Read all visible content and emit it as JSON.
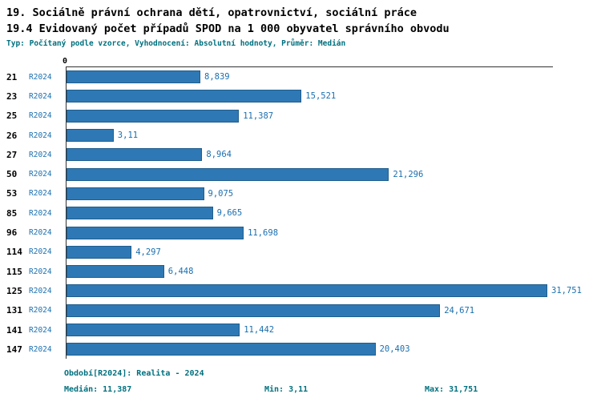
{
  "header": {
    "line1": "19. Sociálně právní ochrana dětí, opatrovnictví, sociální práce",
    "line2": "19.4 Evidovaný počet případů SPOD na 1 000 obyvatel správního obvodu",
    "meta": "Typ: Počítaný podle vzorce, Vyhodnocení: Absolutní hodnoty, Průměr: Medián"
  },
  "chart_data": {
    "type": "bar",
    "orientation": "horizontal",
    "title": "19.4 Evidovaný počet případů SPOD na 1 000 obyvatel správního obvodu",
    "series_label": "R2024",
    "categories": [
      "21",
      "23",
      "25",
      "26",
      "27",
      "50",
      "53",
      "85",
      "96",
      "114",
      "115",
      "125",
      "131",
      "141",
      "147"
    ],
    "values": [
      8.839,
      15.521,
      11.387,
      3.11,
      8.964,
      21.296,
      9.075,
      9.665,
      11.698,
      4.297,
      6.448,
      31.751,
      24.671,
      11.442,
      20.403
    ],
    "value_labels": [
      "8,839",
      "15,521",
      "11,387",
      "3,11",
      "8,964",
      "21,296",
      "9,075",
      "9,665",
      "11,698",
      "4,297",
      "6,448",
      "31,751",
      "24,671",
      "11,442",
      "20,403"
    ],
    "zero_label": "0",
    "xlim": [
      0,
      32
    ],
    "grid": false,
    "legend_position": "none"
  },
  "footer": {
    "period": "Období[R2024]: Realita - 2024",
    "median": "Medián: 11,387",
    "min": "Min: 3,11",
    "max": "Max: 31,751"
  },
  "colors": {
    "bar": "#2e79b5",
    "bar_border": "#1f5d8c",
    "value_text": "#1a6faf",
    "meta_text": "#00707e",
    "title_text": "#000000",
    "axis": "#333333"
  }
}
